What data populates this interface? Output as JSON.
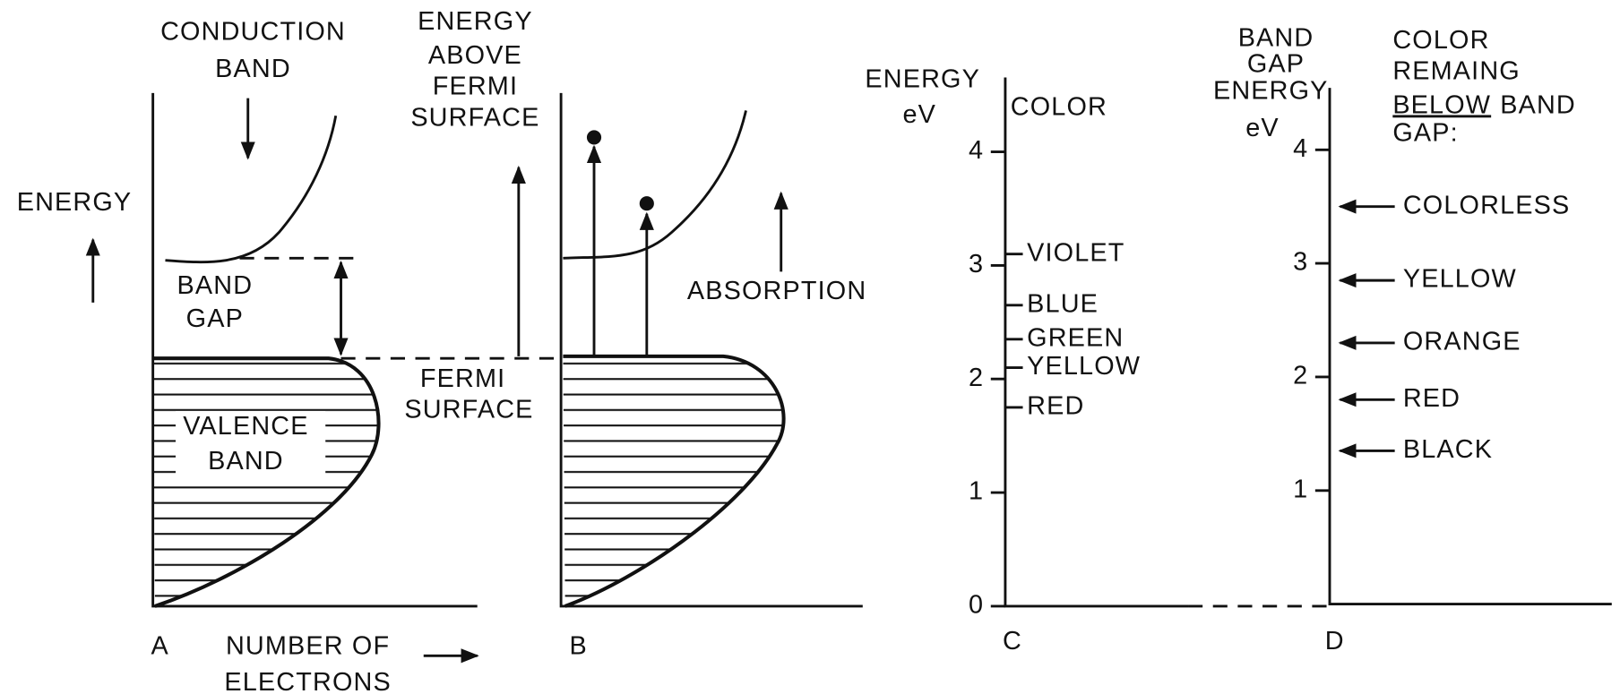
{
  "panel_a": {
    "label": "A",
    "conduction": [
      "CONDUCTION",
      "BAND"
    ],
    "energy": "ENERGY",
    "gap": [
      "BAND",
      "GAP"
    ],
    "valence": [
      "VALENCE",
      "BAND"
    ],
    "xlabel": [
      "NUMBER OF",
      "ELECTRONS"
    ]
  },
  "fermi": {
    "above": [
      "ENERGY",
      "ABOVE",
      "FERMI",
      "SURFACE"
    ],
    "surface": [
      "FERMI",
      "SURFACE"
    ]
  },
  "panel_b": {
    "label": "B",
    "absorption": "ABSORPTION"
  },
  "panel_c": {
    "label": "C",
    "ylabel": [
      "ENERGY",
      "eV"
    ],
    "heading": "COLOR",
    "yticks": [
      0,
      1,
      2,
      3,
      4
    ],
    "colors": [
      {
        "name": "VIOLET",
        "value": 3.1
      },
      {
        "name": "BLUE",
        "value": 2.65
      },
      {
        "name": "GREEN",
        "value": 2.35
      },
      {
        "name": "YELLOW",
        "value": 2.1
      },
      {
        "name": "RED",
        "value": 1.75
      }
    ]
  },
  "panel_d": {
    "label": "D",
    "ylabel": [
      "BAND",
      "GAP",
      "ENERGY",
      "eV"
    ],
    "heading": [
      "COLOR",
      "REMAING",
      "BELOW",
      "BAND",
      "GAP:"
    ],
    "yticks": [
      1,
      2,
      3,
      4
    ],
    "colors": [
      {
        "name": "COLORLESS",
        "value": 3.5
      },
      {
        "name": "YELLOW",
        "value": 2.85
      },
      {
        "name": "ORANGE",
        "value": 2.3
      },
      {
        "name": "RED",
        "value": 1.8
      },
      {
        "name": "BLACK",
        "value": 1.35
      }
    ]
  }
}
